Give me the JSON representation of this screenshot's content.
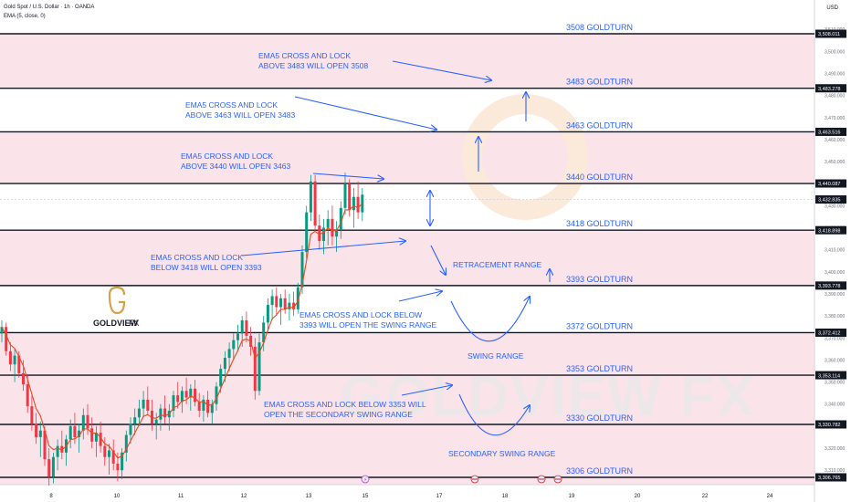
{
  "header": {
    "title": "Gold Spot / U.S. Dollar · 1h · OANDA",
    "indicator": "EMA (5, close, 0)",
    "currency": "USD"
  },
  "logo": {
    "brand": "GOLDVIEW",
    "suffix": "FX"
  },
  "watermark": "GOLDVIEW FX",
  "colors": {
    "up": "#089981",
    "down": "#f23645",
    "ema": "#e8491d",
    "zone": "#fbe3ea",
    "annotation": "#2962ff",
    "logo_gold": "#d4a14a"
  },
  "chart_data": {
    "type": "candlestick",
    "ylim": [
      3302,
      3512
    ],
    "x_ticks": [
      "8",
      "10",
      "11",
      "12",
      "13",
      "15",
      "17",
      "18",
      "19",
      "20",
      "22",
      "24"
    ],
    "y_ticks": [
      3310,
      3320,
      3330,
      3340,
      3350,
      3360,
      3370,
      3380,
      3390,
      3400,
      3410,
      3420,
      3430,
      3440,
      3450,
      3460,
      3470,
      3480,
      3490,
      3500,
      3510
    ],
    "levels": [
      {
        "value": 3508.011,
        "label": "3508 GOLDTURN",
        "price_tag": "3,508.011"
      },
      {
        "value": 3483.278,
        "label": "3483 GOLDTURN",
        "price_tag": "3,483.278"
      },
      {
        "value": 3463.516,
        "label": "3463 GOLDTURN",
        "price_tag": "3,463.516"
      },
      {
        "value": 3440.087,
        "label": "3440 GOLDTURN",
        "price_tag": "3,440.087"
      },
      {
        "value": 3418.898,
        "label": "3418 GOLDTURN",
        "price_tag": "3,418.898"
      },
      {
        "value": 3393.778,
        "label": "3393 GOLDTURN",
        "price_tag": "3,393.778"
      },
      {
        "value": 3372.412,
        "label": "3372 GOLDTURN",
        "price_tag": "3,372.412"
      },
      {
        "value": 3353.114,
        "label": "3353 GOLDTURN",
        "price_tag": "3,353.114"
      },
      {
        "value": 3330.782,
        "label": "3330 GOLDTURN",
        "price_tag": "3,330.782"
      },
      {
        "value": 3306.765,
        "label": "3306 GOLDTURN",
        "price_tag": "3,306.765"
      }
    ],
    "current_price": {
      "value": 3432.835,
      "price_tag": "3,432.835"
    },
    "zones": [
      [
        3483.278,
        3508.011
      ],
      [
        3440.087,
        3463.516
      ],
      [
        3393.778,
        3418.898
      ],
      [
        3302,
        3372.412
      ]
    ],
    "annotations": [
      {
        "lines": [
          "EMA5 CROSS AND LOCK",
          "ABOVE 3483 WILL OPEN 3508"
        ]
      },
      {
        "lines": [
          "EMA5 CROSS AND LOCK",
          "ABOVE 3463 WILL OPEN 3483"
        ]
      },
      {
        "lines": [
          "EMA5 CROSS AND LOCK",
          "ABOVE 3440 WILL OPEN 3463"
        ]
      },
      {
        "lines": [
          "EMA5 CROSS AND LOCK",
          "BELOW 3418 WILL OPEN 3393"
        ]
      },
      {
        "lines": [
          "EMA5 CROSS AND LOCK BELOW",
          "3393 WILL OPEN THE SWING RANGE"
        ]
      },
      {
        "lines": [
          "EMA5 CROSS AND LOCK BELOW 3353 WILL",
          "OPEN THE SECONDARY SWING RANGE"
        ]
      }
    ],
    "range_labels": [
      "RETRACEMENT RANGE",
      "SWING RANGE",
      "SECONDARY SWING RANGE"
    ],
    "candles": [
      [
        3372,
        3378,
        3368,
        3375
      ],
      [
        3375,
        3377,
        3362,
        3364
      ],
      [
        3364,
        3368,
        3355,
        3358
      ],
      [
        3358,
        3365,
        3350,
        3362
      ],
      [
        3362,
        3364,
        3352,
        3354
      ],
      [
        3354,
        3360,
        3346,
        3349
      ],
      [
        3349,
        3353,
        3336,
        3339
      ],
      [
        3339,
        3344,
        3328,
        3331
      ],
      [
        3331,
        3336,
        3322,
        3325
      ],
      [
        3325,
        3332,
        3316,
        3328
      ],
      [
        3328,
        3330,
        3312,
        3315
      ],
      [
        3315,
        3320,
        3303,
        3307
      ],
      [
        3307,
        3318,
        3304,
        3316
      ],
      [
        3316,
        3324,
        3310,
        3321
      ],
      [
        3321,
        3328,
        3315,
        3318
      ],
      [
        3318,
        3326,
        3312,
        3324
      ],
      [
        3324,
        3333,
        3320,
        3330
      ],
      [
        3330,
        3336,
        3322,
        3325
      ],
      [
        3325,
        3331,
        3318,
        3328
      ],
      [
        3328,
        3338,
        3324,
        3335
      ],
      [
        3335,
        3340,
        3326,
        3329
      ],
      [
        3329,
        3334,
        3320,
        3323
      ],
      [
        3323,
        3330,
        3316,
        3327
      ],
      [
        3327,
        3332,
        3318,
        3321
      ],
      [
        3321,
        3325,
        3312,
        3316
      ],
      [
        3316,
        3322,
        3308,
        3319
      ],
      [
        3319,
        3324,
        3310,
        3313
      ],
      [
        3313,
        3318,
        3305,
        3310
      ],
      [
        3310,
        3320,
        3306,
        3318
      ],
      [
        3318,
        3328,
        3314,
        3326
      ],
      [
        3326,
        3334,
        3322,
        3331
      ],
      [
        3331,
        3338,
        3326,
        3334
      ],
      [
        3334,
        3342,
        3330,
        3338
      ],
      [
        3338,
        3346,
        3334,
        3342
      ],
      [
        3342,
        3348,
        3335,
        3337
      ],
      [
        3337,
        3342,
        3328,
        3331
      ],
      [
        3331,
        3336,
        3324,
        3333
      ],
      [
        3333,
        3340,
        3328,
        3338
      ],
      [
        3338,
        3344,
        3331,
        3334
      ],
      [
        3334,
        3340,
        3328,
        3337
      ],
      [
        3337,
        3346,
        3334,
        3344
      ],
      [
        3344,
        3350,
        3338,
        3341
      ],
      [
        3341,
        3348,
        3336,
        3346
      ],
      [
        3346,
        3352,
        3340,
        3343
      ],
      [
        3343,
        3349,
        3337,
        3347
      ],
      [
        3347,
        3351,
        3339,
        3341
      ],
      [
        3341,
        3345,
        3334,
        3337
      ],
      [
        3337,
        3344,
        3332,
        3342
      ],
      [
        3342,
        3346,
        3334,
        3336
      ],
      [
        3336,
        3342,
        3331,
        3340
      ],
      [
        3340,
        3350,
        3337,
        3348
      ],
      [
        3348,
        3358,
        3345,
        3356
      ],
      [
        3356,
        3364,
        3350,
        3361
      ],
      [
        3361,
        3368,
        3355,
        3365
      ],
      [
        3365,
        3372,
        3360,
        3369
      ],
      [
        3369,
        3376,
        3364,
        3372
      ],
      [
        3372,
        3380,
        3366,
        3378
      ],
      [
        3378,
        3382,
        3368,
        3371
      ],
      [
        3371,
        3375,
        3362,
        3366
      ],
      [
        3366,
        3370,
        3342,
        3346
      ],
      [
        3346,
        3372,
        3344,
        3368
      ],
      [
        3368,
        3380,
        3364,
        3377
      ],
      [
        3377,
        3388,
        3373,
        3385
      ],
      [
        3385,
        3392,
        3378,
        3389
      ],
      [
        3389,
        3393,
        3380,
        3384
      ],
      [
        3384,
        3390,
        3376,
        3388
      ],
      [
        3388,
        3392,
        3381,
        3383
      ],
      [
        3383,
        3390,
        3378,
        3386
      ],
      [
        3386,
        3391,
        3380,
        3383
      ],
      [
        3383,
        3395,
        3381,
        3393
      ],
      [
        3393,
        3412,
        3390,
        3409
      ],
      [
        3409,
        3430,
        3406,
        3427
      ],
      [
        3427,
        3444,
        3423,
        3441
      ],
      [
        3441,
        3444,
        3418,
        3421
      ],
      [
        3421,
        3426,
        3410,
        3414
      ],
      [
        3414,
        3424,
        3408,
        3420
      ],
      [
        3420,
        3428,
        3412,
        3424
      ],
      [
        3424,
        3430,
        3412,
        3416
      ],
      [
        3416,
        3423,
        3409,
        3419
      ],
      [
        3419,
        3432,
        3415,
        3429
      ],
      [
        3429,
        3445,
        3426,
        3440
      ],
      [
        3440,
        3442,
        3425,
        3428
      ],
      [
        3428,
        3438,
        3420,
        3434
      ],
      [
        3434,
        3441,
        3424,
        3427
      ],
      [
        3427,
        3438,
        3423,
        3435
      ]
    ]
  }
}
